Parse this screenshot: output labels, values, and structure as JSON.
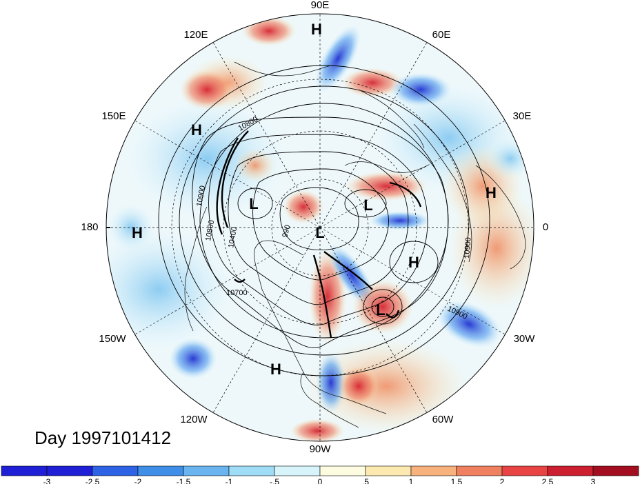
{
  "title": "Day 1997101412",
  "longitude_labels": [
    "90E",
    "60E",
    "30E",
    "0",
    "30W",
    "60W",
    "90W",
    "120W",
    "150W",
    "180",
    "150E",
    "120E"
  ],
  "pressure_centers": [
    {
      "kind": "H",
      "lon_lat_hint": "90E-high"
    },
    {
      "kind": "H",
      "lon_lat_hint": "150E"
    },
    {
      "kind": "L",
      "lon_lat_hint": "170E"
    },
    {
      "kind": "L",
      "lon_lat_hint": "north-pole"
    },
    {
      "kind": "L",
      "lon_lat_hint": "20E"
    },
    {
      "kind": "H",
      "lon_lat_hint": "10E-africa"
    },
    {
      "kind": "H",
      "lon_lat_hint": "180"
    },
    {
      "kind": "H",
      "lon_lat_hint": "20W"
    },
    {
      "kind": "L",
      "lon_lat_hint": "45W"
    },
    {
      "kind": "H",
      "lon_lat_hint": "110W"
    }
  ],
  "contour_labels": [
    "10800",
    "10900",
    "10800",
    "10400",
    "990",
    "10700",
    "10900",
    "10900"
  ],
  "colorbar": {
    "ticks": [
      "-3",
      "-2.5",
      "-2",
      "-1.5",
      "-1",
      "-.5",
      "0",
      ".5",
      "1",
      "1.5",
      "2",
      "2.5",
      "3"
    ],
    "colors": [
      "#1f1fd6",
      "#2e63e6",
      "#3f8ee8",
      "#6ab4f0",
      "#9fdcf5",
      "#d8f4fb",
      "#fdfbe0",
      "#fbe9b0",
      "#f7b27e",
      "#ef8060",
      "#e84444",
      "#cc1f2f",
      "#a20e1f"
    ]
  }
}
